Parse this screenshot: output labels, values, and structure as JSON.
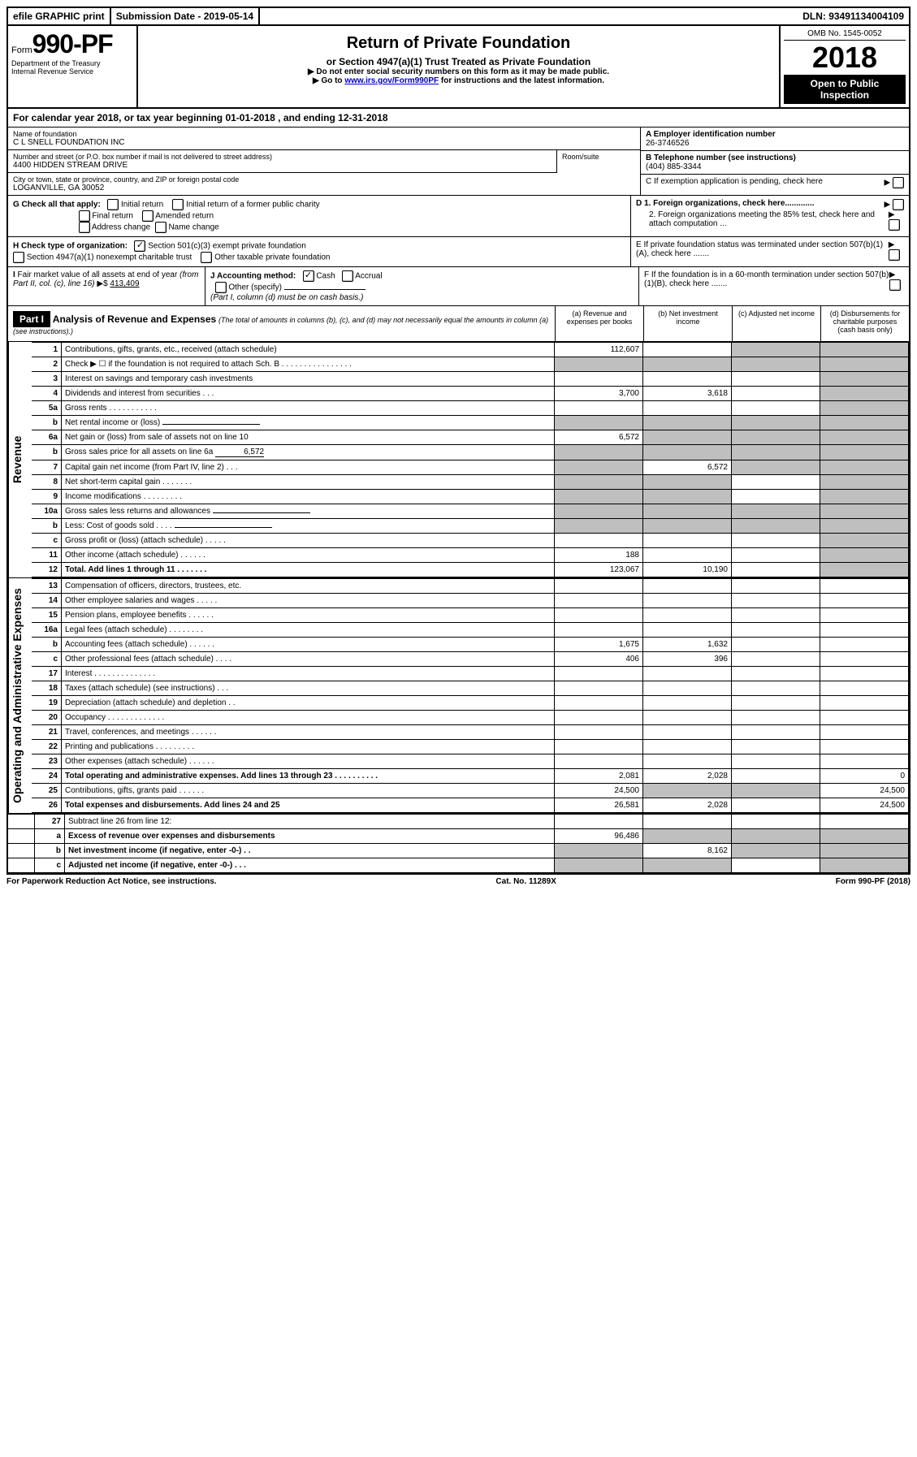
{
  "topbar": {
    "efile": "efile GRAPHIC print",
    "submission": "Submission Date - 2019-05-14",
    "dln": "DLN: 93491134004109"
  },
  "header": {
    "form_prefix": "Form",
    "form_num": "990-PF",
    "dept1": "Department of the Treasury",
    "dept2": "Internal Revenue Service",
    "title": "Return of Private Foundation",
    "subtitle": "or Section 4947(a)(1) Trust Treated as Private Foundation",
    "note1": "▶ Do not enter social security numbers on this form as it may be made public.",
    "note2_pre": "▶ Go to ",
    "note2_link": "www.irs.gov/Form990PF",
    "note2_post": " for instructions and the latest information.",
    "omb": "OMB No. 1545-0052",
    "year": "2018",
    "open_pub": "Open to Public Inspection"
  },
  "calyear": "For calendar year 2018, or tax year beginning 01-01-2018             , and ending 12-31-2018",
  "name": {
    "label": "Name of foundation",
    "value": "C L SNELL FOUNDATION INC"
  },
  "ein": {
    "label": "A Employer identification number",
    "value": "26-3746526"
  },
  "address": {
    "label": "Number and street (or P.O. box number if mail is not delivered to street address)",
    "value": "4400 HIDDEN STREAM DRIVE",
    "room_label": "Room/suite"
  },
  "phone": {
    "label": "B Telephone number (see instructions)",
    "value": "(404) 885-3344"
  },
  "city": {
    "label": "City or town, state or province, country, and ZIP or foreign postal code",
    "value": "LOGANVILLE, GA  30052"
  },
  "c_label": "C If exemption application is pending, check here",
  "g": {
    "label": "G Check all that apply:",
    "opts": [
      "Initial return",
      "Initial return of a former public charity",
      "Final return",
      "Amended return",
      "Address change",
      "Name change"
    ]
  },
  "h": {
    "label": "H Check type of organization:",
    "opt1": "Section 501(c)(3) exempt private foundation",
    "opt2": "Section 4947(a)(1) nonexempt charitable trust",
    "opt3": "Other taxable private foundation"
  },
  "d": {
    "d1": "D 1. Foreign organizations, check here.............",
    "d2": "2. Foreign organizations meeting the 85% test, check here and attach computation ...",
    "e": "E  If private foundation status was terminated under section 507(b)(1)(A), check here .......",
    "f": "F  If the foundation is in a 60-month termination under section 507(b)(1)(B), check here ......."
  },
  "i": {
    "label": "I Fair market value of all assets at end of year (from Part II, col. (c), line 16) ▶$",
    "value": "413,409"
  },
  "j": {
    "label": "J Accounting method:",
    "cash": "Cash",
    "accrual": "Accrual",
    "other": "Other (specify)",
    "note": "(Part I, column (d) must be on cash basis.)"
  },
  "part1": {
    "header": "Part I",
    "title": "Analysis of Revenue and Expenses",
    "desc": "(The total of amounts in columns (b), (c), and (d) may not necessarily equal the amounts in column (a) (see instructions).)",
    "col_a": "(a) Revenue and expenses per books",
    "col_b": "(b) Net investment income",
    "col_c": "(c) Adjusted net income",
    "col_d": "(d) Disbursements for charitable purposes (cash basis only)"
  },
  "revenue_label": "Revenue",
  "expenses_label": "Operating and Administrative Expenses",
  "rows": {
    "r1": {
      "num": "1",
      "label": "Contributions, gifts, grants, etc., received (attach schedule)",
      "a": "112,607",
      "grey": [
        "c"
      ]
    },
    "r2": {
      "num": "2",
      "label": "Check ▶ ☐ if the foundation is not required to attach Sch. B   .  .  .  .  .  .  .  .  .  .  .  .  .  .  .  .",
      "grey_all": true
    },
    "r3": {
      "num": "3",
      "label": "Interest on savings and temporary cash investments"
    },
    "r4": {
      "num": "4",
      "label": "Dividends and interest from securities   .  .  .",
      "a": "3,700",
      "b": "3,618"
    },
    "r5a": {
      "num": "5a",
      "label": "Gross rents   .  .  .  .  .  .  .  .  .  .  ."
    },
    "r5b": {
      "num": "b",
      "label": "Net rental income or (loss)",
      "inline": true,
      "grey_all": true
    },
    "r6a": {
      "num": "6a",
      "label": "Net gain or (loss) from sale of assets not on line 10",
      "a": "6,572",
      "grey": [
        "b",
        "c"
      ]
    },
    "r6b": {
      "num": "b",
      "label": "Gross sales price for all assets on line 6a",
      "inline_val": "6,572",
      "grey_all": true
    },
    "r7": {
      "num": "7",
      "label": "Capital gain net income (from Part IV, line 2)   .  .  .",
      "b": "6,572",
      "grey": [
        "a",
        "c"
      ]
    },
    "r8": {
      "num": "8",
      "label": "Net short-term capital gain   .  .  .  .  .  .  .",
      "grey": [
        "a",
        "b"
      ]
    },
    "r9": {
      "num": "9",
      "label": "Income modifications   .  .  .  .  .  .  .  .  .",
      "grey": [
        "a",
        "b"
      ]
    },
    "r10a": {
      "num": "10a",
      "label": "Gross sales less returns and allowances",
      "inline": true,
      "grey_all": true
    },
    "r10b": {
      "num": "b",
      "label": "Less: Cost of goods sold   .  .  .  .",
      "inline": true,
      "grey_all": true
    },
    "r10c": {
      "num": "c",
      "label": "Gross profit or (loss) (attach schedule)   .  .  .  .  ."
    },
    "r11": {
      "num": "11",
      "label": "Other income (attach schedule)   .  .  .  .  .  .",
      "a": "188"
    },
    "r12": {
      "num": "12",
      "label": "Total. Add lines 1 through 11   .  .  .  .  .  .  .",
      "bold": true,
      "a": "123,067",
      "b": "10,190",
      "grey": [
        "d"
      ]
    },
    "r13": {
      "num": "13",
      "label": "Compensation of officers, directors, trustees, etc."
    },
    "r14": {
      "num": "14",
      "label": "Other employee salaries and wages   .  .  .  .  ."
    },
    "r15": {
      "num": "15",
      "label": "Pension plans, employee benefits   .  .  .  .  .  ."
    },
    "r16a": {
      "num": "16a",
      "label": "Legal fees (attach schedule)  .  .  .  .  .  .  .  ."
    },
    "r16b": {
      "num": "b",
      "label": "Accounting fees (attach schedule)   .  .  .  .  .  .",
      "a": "1,675",
      "b": "1,632"
    },
    "r16c": {
      "num": "c",
      "label": "Other professional fees (attach schedule)   .  .  .  .",
      "a": "406",
      "b": "396"
    },
    "r17": {
      "num": "17",
      "label": "Interest   .  .  .  .  .  .  .  .  .  .  .  .  .  ."
    },
    "r18": {
      "num": "18",
      "label": "Taxes (attach schedule) (see instructions)     .  .  ."
    },
    "r19": {
      "num": "19",
      "label": "Depreciation (attach schedule) and depletion    .  ."
    },
    "r20": {
      "num": "20",
      "label": "Occupancy   .  .  .  .  .  .  .  .  .  .  .  .  ."
    },
    "r21": {
      "num": "21",
      "label": "Travel, conferences, and meetings  .  .  .  .  .  ."
    },
    "r22": {
      "num": "22",
      "label": "Printing and publications  .  .  .  .  .  .  .  .  ."
    },
    "r23": {
      "num": "23",
      "label": "Other expenses (attach schedule)   .  .  .  .  .  ."
    },
    "r24": {
      "num": "24",
      "label": "Total operating and administrative expenses. Add lines 13 through 23   .  .  .  .  .  .  .  .  .  .",
      "bold": true,
      "a": "2,081",
      "b": "2,028",
      "d": "0"
    },
    "r25": {
      "num": "25",
      "label": "Contributions, gifts, grants paid     .  .  .  .  .  .",
      "a": "24,500",
      "d": "24,500",
      "grey": [
        "b",
        "c"
      ]
    },
    "r26": {
      "num": "26",
      "label": "Total expenses and disbursements. Add lines 24 and 25",
      "bold": true,
      "a": "26,581",
      "b": "2,028",
      "d": "24,500"
    },
    "r27": {
      "num": "27",
      "label": "Subtract line 26 from line 12:"
    },
    "r27a": {
      "num": "a",
      "label": "Excess of revenue over expenses and disbursements",
      "bold": true,
      "a": "96,486",
      "grey": [
        "b",
        "c",
        "d"
      ]
    },
    "r27b": {
      "num": "b",
      "label": "Net investment income (if negative, enter -0-)   .  .",
      "bold": true,
      "b": "8,162",
      "grey": [
        "a",
        "c",
        "d"
      ]
    },
    "r27c": {
      "num": "c",
      "label": "Adjusted net income (if negative, enter -0-)   .  .  .",
      "bold": true,
      "grey": [
        "a",
        "b",
        "d"
      ]
    }
  },
  "footer": {
    "left": "For Paperwork Reduction Act Notice, see instructions.",
    "center": "Cat. No. 11289X",
    "right": "Form 990-PF (2018)"
  }
}
